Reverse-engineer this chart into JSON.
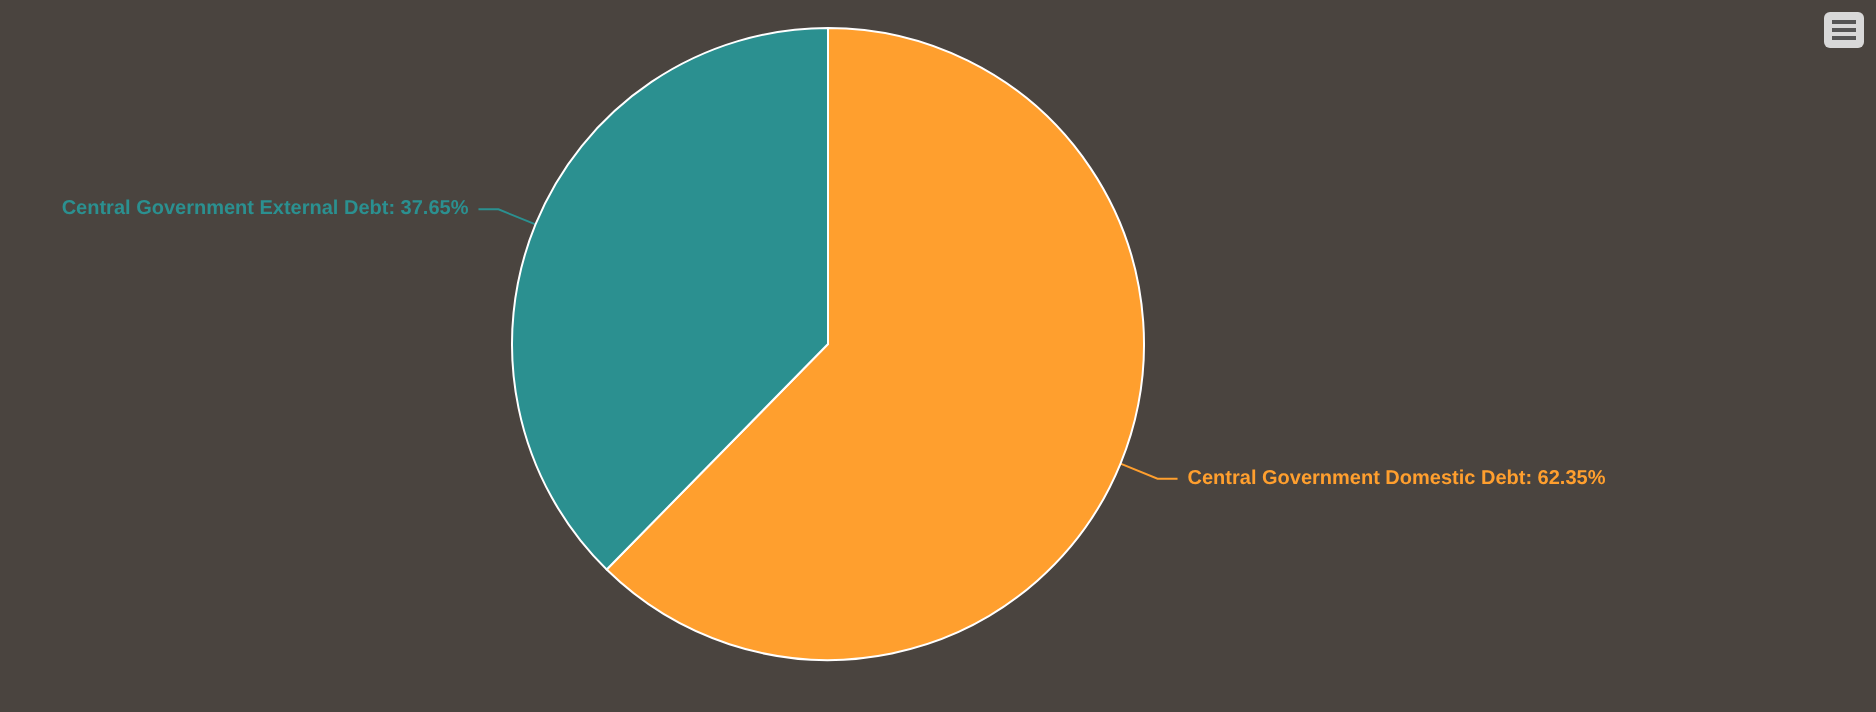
{
  "chart_data": {
    "type": "pie",
    "categories": [
      "Central Government Domestic Debt",
      "Central Government External Debt"
    ],
    "values": [
      62.35,
      37.65
    ],
    "colors": [
      "#ff9f2e",
      "#2b9090"
    ],
    "value_labels": [
      ": 62.35%",
      ": 37.65%"
    ],
    "legend": false
  }
}
